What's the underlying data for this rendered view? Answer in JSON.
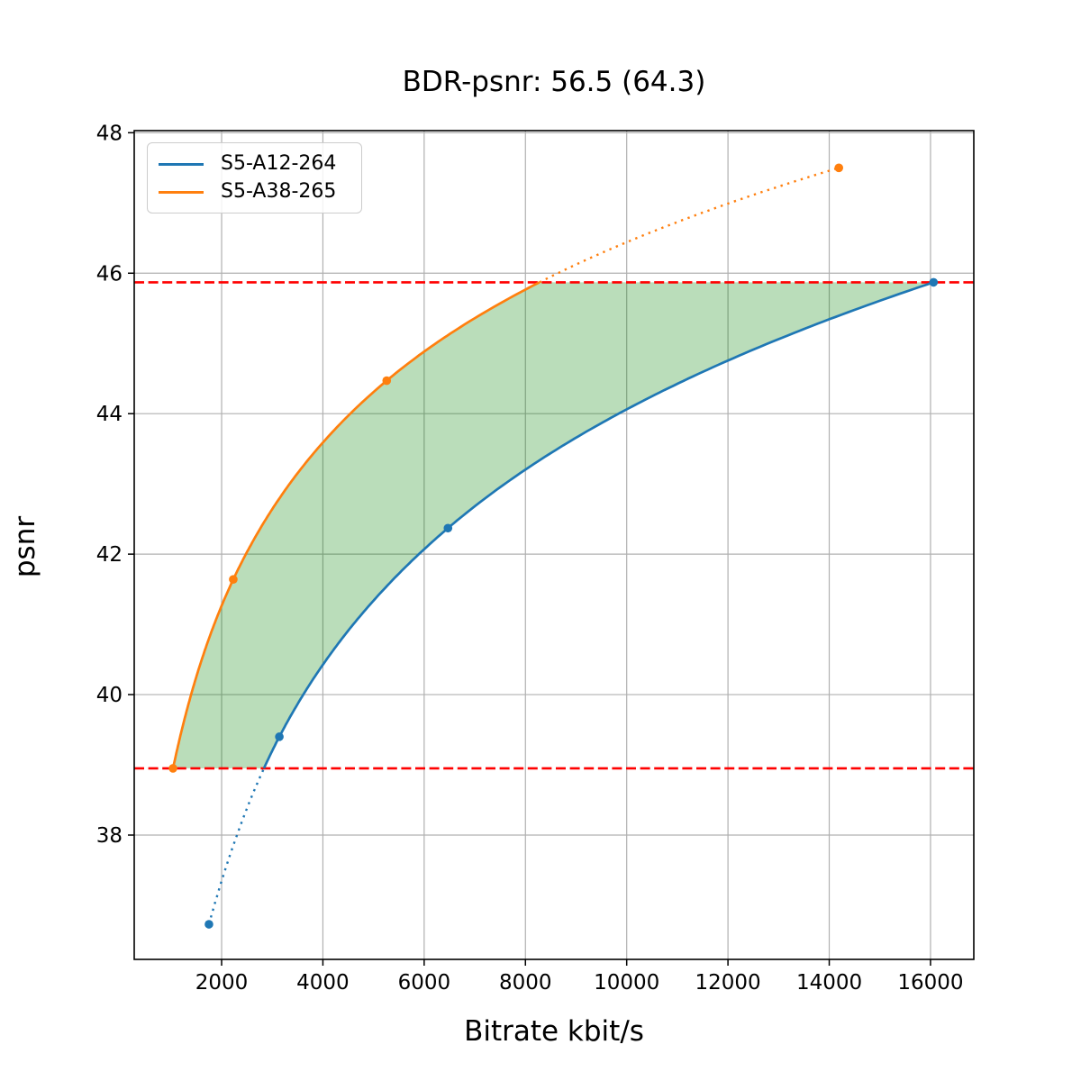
{
  "title": "BDR-psnr: 56.5 (64.3)",
  "chart_data": {
    "type": "line",
    "title": "BDR-psnr: 56.5 (64.3)",
    "xlabel": "Bitrate kbit/s",
    "ylabel": "psnr",
    "xlim": [
      274,
      16855
    ],
    "ylim": [
      36.23,
      48.03
    ],
    "x_ticks": [
      2000,
      4000,
      6000,
      8000,
      10000,
      12000,
      14000,
      16000
    ],
    "y_ticks": [
      38,
      40,
      42,
      44,
      46,
      48
    ],
    "grid": true,
    "grid_color": "#b0b0b0",
    "legend_position": "upper left",
    "series": [
      {
        "name": "S5-A12-264",
        "color": "#1f77b4",
        "points": [
          [
            1750,
            36.73
          ],
          [
            3140,
            39.4
          ],
          [
            6470,
            42.37
          ],
          [
            16060,
            45.87
          ]
        ]
      },
      {
        "name": "S5-A38-265",
        "color": "#ff7f0e",
        "points": [
          [
            1040,
            38.95
          ],
          [
            2230,
            41.64
          ],
          [
            5260,
            44.47
          ],
          [
            14190,
            47.5
          ]
        ]
      }
    ],
    "overlap_region": {
      "psnr_low": 38.95,
      "psnr_high": 45.87,
      "boundary_line_color": "#ff0000",
      "boundary_line_style": "dashed",
      "fill_color": "#008000",
      "fill_opacity": 0.27
    }
  }
}
